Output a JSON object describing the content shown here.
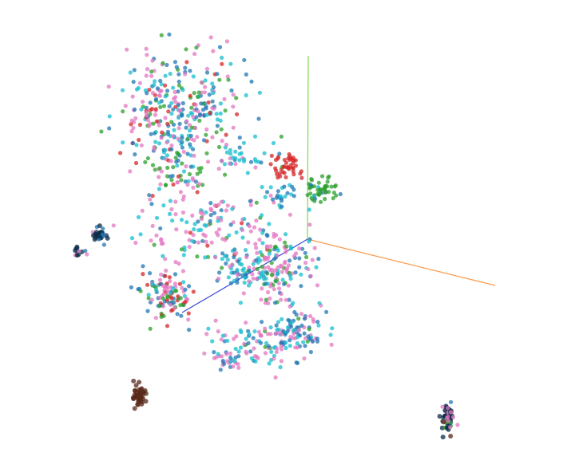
{
  "chart_data": {
    "type": "scatter",
    "title": "",
    "xlabel": "",
    "ylabel": "",
    "zlabel": "",
    "legend": "none",
    "grid": false,
    "background": "#ffffff",
    "axes": {
      "x": {
        "color": "#ff9a4a"
      },
      "y": {
        "color": "#7cdc4a"
      },
      "z": {
        "color": "#3a46d6"
      }
    },
    "series": [
      {
        "color": "#e377c2",
        "size": 2.6
      },
      {
        "color": "#17becf",
        "size": 2.6
      },
      {
        "color": "#1f77b4",
        "size": 2.6
      },
      {
        "color": "#2ca02c",
        "size": 2.6
      },
      {
        "color": "#d62728",
        "size": 2.6
      },
      {
        "color": "#0b2a44",
        "size": 3.0
      },
      {
        "color": "#5a2a1a",
        "size": 3.0
      }
    ],
    "clusters": [
      {
        "x": 0.31,
        "y": 0.23,
        "rx": 0.1,
        "ry": 0.11,
        "n": 320,
        "mix": [
          0.28,
          0.18,
          0.24,
          0.16,
          0.14,
          0,
          0
        ]
      },
      {
        "x": 0.3,
        "y": 0.36,
        "rx": 0.05,
        "ry": 0.05,
        "n": 50,
        "mix": [
          0.2,
          0.1,
          0.2,
          0.35,
          0.15,
          0,
          0
        ]
      },
      {
        "x": 0.36,
        "y": 0.48,
        "rx": 0.11,
        "ry": 0.08,
        "n": 140,
        "mix": [
          0.4,
          0.3,
          0.15,
          0.08,
          0.07,
          0,
          0
        ]
      },
      {
        "x": 0.42,
        "y": 0.33,
        "rx": 0.04,
        "ry": 0.03,
        "n": 35,
        "mix": [
          0.1,
          0.8,
          0.1,
          0,
          0,
          0,
          0
        ]
      },
      {
        "x": 0.5,
        "y": 0.35,
        "rx": 0.02,
        "ry": 0.025,
        "n": 45,
        "mix": [
          0.02,
          0.02,
          0.02,
          0.04,
          0.9,
          0,
          0
        ]
      },
      {
        "x": 0.56,
        "y": 0.4,
        "rx": 0.025,
        "ry": 0.025,
        "n": 50,
        "mix": [
          0,
          0.05,
          0.05,
          0.9,
          0,
          0,
          0
        ]
      },
      {
        "x": 0.49,
        "y": 0.41,
        "rx": 0.02,
        "ry": 0.02,
        "n": 25,
        "mix": [
          0.1,
          0.2,
          0.6,
          0.1,
          0,
          0,
          0
        ]
      },
      {
        "x": 0.29,
        "y": 0.62,
        "rx": 0.04,
        "ry": 0.05,
        "n": 110,
        "mix": [
          0.3,
          0.05,
          0.25,
          0.2,
          0.2,
          0,
          0
        ]
      },
      {
        "x": 0.48,
        "y": 0.56,
        "rx": 0.06,
        "ry": 0.07,
        "n": 160,
        "mix": [
          0.45,
          0.25,
          0.15,
          0.15,
          0,
          0,
          0
        ]
      },
      {
        "x": 0.41,
        "y": 0.57,
        "rx": 0.04,
        "ry": 0.03,
        "n": 40,
        "mix": [
          0.2,
          0.4,
          0.4,
          0,
          0,
          0,
          0
        ]
      },
      {
        "x": 0.52,
        "y": 0.69,
        "rx": 0.04,
        "ry": 0.05,
        "n": 90,
        "mix": [
          0.35,
          0.2,
          0.4,
          0.05,
          0,
          0,
          0
        ]
      },
      {
        "x": 0.45,
        "y": 0.72,
        "rx": 0.08,
        "ry": 0.04,
        "n": 90,
        "mix": [
          0.4,
          0.35,
          0.2,
          0.05,
          0,
          0,
          0
        ]
      },
      {
        "x": 0.39,
        "y": 0.76,
        "rx": 0.03,
        "ry": 0.02,
        "n": 25,
        "mix": [
          0.5,
          0.2,
          0.3,
          0,
          0,
          0,
          0
        ]
      },
      {
        "x": 0.175,
        "y": 0.493,
        "rx": 0.009,
        "ry": 0.014,
        "n": 35,
        "mix": [
          0,
          0,
          0.25,
          0,
          0,
          0.75,
          0
        ]
      },
      {
        "x": 0.136,
        "y": 0.528,
        "rx": 0.012,
        "ry": 0.012,
        "n": 14,
        "mix": [
          0.2,
          0,
          0.3,
          0.2,
          0,
          0.3,
          0
        ]
      },
      {
        "x": 0.243,
        "y": 0.828,
        "rx": 0.011,
        "ry": 0.022,
        "n": 50,
        "mix": [
          0,
          0,
          0,
          0,
          0,
          0,
          1
        ]
      },
      {
        "x": 0.778,
        "y": 0.88,
        "rx": 0.009,
        "ry": 0.022,
        "n": 50,
        "mix": [
          0.12,
          0,
          0.08,
          0.12,
          0,
          0.68,
          0
        ]
      },
      {
        "x": 0.78,
        "y": 0.87,
        "rx": 0.02,
        "ry": 0.045,
        "n": 12,
        "mix": [
          0.5,
          0,
          0.3,
          0,
          0,
          0,
          0.2
        ]
      }
    ]
  }
}
